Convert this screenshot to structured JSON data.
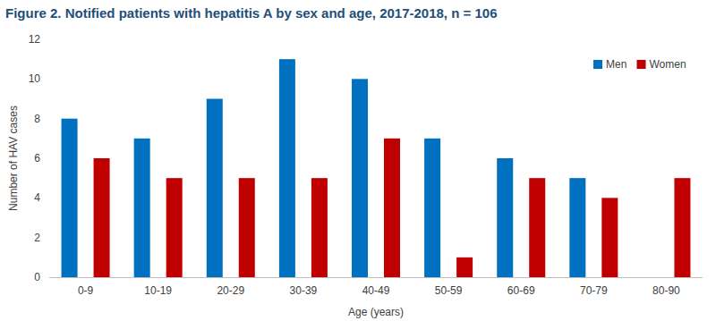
{
  "chart_data": {
    "type": "bar",
    "title": "Figure 2. Notified patients with hepatitis A by sex and age, 2017-2018, n = 106",
    "x_label": "Age (years)",
    "y_label": "Number of HAV cases",
    "categories": [
      "0-9",
      "10-19",
      "20-29",
      "30-39",
      "40-49",
      "50-59",
      "60-69",
      "70-79",
      "80-90"
    ],
    "series": [
      {
        "name": "Men",
        "color": "#0070c0",
        "values": [
          8,
          7,
          9,
          11,
          10,
          7,
          6,
          5,
          0
        ]
      },
      {
        "name": "Women",
        "color": "#c00000",
        "values": [
          6,
          5,
          5,
          5,
          7,
          1,
          5,
          4,
          5
        ]
      }
    ],
    "ylim": [
      0,
      12
    ],
    "yticks": [
      0,
      2,
      4,
      6,
      8,
      10,
      12
    ],
    "grid": false,
    "legend": "upper right"
  }
}
